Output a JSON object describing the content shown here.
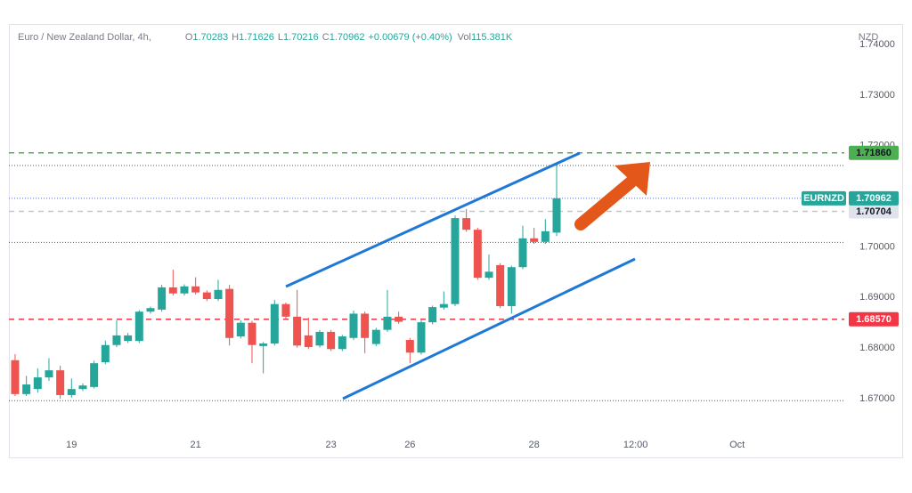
{
  "chart_data": {
    "type": "candlestick",
    "title": "Euro / New Zealand Dollar, 4h,",
    "ohlc_header": [
      {
        "label": "O",
        "value": "1.70283"
      },
      {
        "label": "H",
        "value": "1.71626"
      },
      {
        "label": "L",
        "value": "1.70216"
      },
      {
        "label": "C",
        "value": "1.70962"
      }
    ],
    "change": "+0.00679 (+0.40%)",
    "volume_label": "Vol",
    "volume": "115.381K",
    "currency": "NZD",
    "up_color": "#26a69a",
    "down_color": "#ef5350",
    "x": [
      0,
      1,
      2,
      3,
      4,
      5,
      6,
      7,
      8,
      9,
      10,
      11,
      12,
      13,
      14,
      15,
      16,
      17,
      18,
      19,
      20,
      21,
      22,
      23,
      24,
      25,
      26,
      27,
      28,
      29,
      30,
      31,
      32,
      33,
      34,
      35,
      36,
      37,
      38,
      39,
      40,
      41,
      42,
      43,
      44,
      45,
      46,
      47,
      48
    ],
    "open": [
      1.6776,
      1.6709,
      1.6719,
      1.6742,
      1.6756,
      1.6707,
      1.6719,
      1.6723,
      1.6772,
      1.6806,
      1.6814,
      1.6814,
      1.6872,
      1.6876,
      1.692,
      1.6908,
      1.6922,
      1.691,
      1.6897,
      1.6917,
      1.6823,
      1.685,
      1.6804,
      1.6809,
      1.6887,
      1.6862,
      1.6825,
      1.6805,
      1.6832,
      1.6798,
      1.682,
      1.6868,
      1.6808,
      1.6836,
      1.6862,
      1.6816,
      1.6791,
      1.6851,
      1.688,
      1.6887,
      1.7057,
      1.7034,
      1.6939,
      1.6964,
      1.6883,
      1.696,
      1.7017,
      1.701,
      1.70283
    ],
    "high": [
      1.6788,
      1.6745,
      1.676,
      1.678,
      1.6765,
      1.674,
      1.673,
      1.6775,
      1.6815,
      1.6855,
      1.683,
      1.6875,
      1.6882,
      1.6925,
      1.6955,
      1.6926,
      1.694,
      1.6914,
      1.6935,
      1.6925,
      1.6855,
      1.6854,
      1.6812,
      1.6895,
      1.689,
      1.6915,
      1.686,
      1.6836,
      1.6836,
      1.6826,
      1.6874,
      1.6872,
      1.684,
      1.6915,
      1.6872,
      1.682,
      1.6855,
      1.6884,
      1.6912,
      1.7062,
      1.7075,
      1.7038,
      1.6985,
      1.6968,
      1.6963,
      1.7042,
      1.7038,
      1.7055,
      1.71626
    ],
    "low": [
      1.6705,
      1.6705,
      1.6712,
      1.6735,
      1.67,
      1.6702,
      1.6715,
      1.672,
      1.6768,
      1.6802,
      1.681,
      1.681,
      1.6868,
      1.6872,
      1.6904,
      1.6904,
      1.6906,
      1.6893,
      1.6893,
      1.6805,
      1.6819,
      1.677,
      1.675,
      1.6805,
      1.6858,
      1.6801,
      1.6798,
      1.6801,
      1.6794,
      1.6794,
      1.6816,
      1.679,
      1.6804,
      1.6832,
      1.6848,
      1.677,
      1.6787,
      1.6847,
      1.6876,
      1.6883,
      1.703,
      1.6935,
      1.6935,
      1.6879,
      1.6868,
      1.6956,
      1.7006,
      1.7006,
      1.70216
    ],
    "close": [
      1.6709,
      1.6728,
      1.6742,
      1.6756,
      1.6707,
      1.6719,
      1.6726,
      1.677,
      1.6806,
      1.6825,
      1.6825,
      1.6872,
      1.6879,
      1.692,
      1.6908,
      1.6922,
      1.691,
      1.6897,
      1.6915,
      1.682,
      1.685,
      1.6806,
      1.6809,
      1.6887,
      1.6862,
      1.6805,
      1.6802,
      1.6832,
      1.6798,
      1.6823,
      1.6868,
      1.682,
      1.6836,
      1.6862,
      1.6852,
      1.6791,
      1.6851,
      1.6881,
      1.6887,
      1.7057,
      1.7034,
      1.6939,
      1.6951,
      1.6883,
      1.696,
      1.7017,
      1.701,
      1.7031,
      1.70962
    ],
    "xlim": [
      -0.55,
      73.5
    ],
    "xticks": [
      {
        "value": 5,
        "label": "19"
      },
      {
        "value": 16,
        "label": "21"
      },
      {
        "value": 28,
        "label": "23"
      },
      {
        "value": 35,
        "label": "26"
      },
      {
        "value": 46,
        "label": "28"
      },
      {
        "value": 55,
        "label": "12:00"
      },
      {
        "value": 64,
        "label": "Oct"
      }
    ],
    "ylim": [
      1.66348,
      1.74408
    ],
    "yticks": [
      {
        "value": 1.67,
        "label": "1.67000"
      },
      {
        "value": 1.68,
        "label": "1.68000"
      },
      {
        "value": 1.69,
        "label": "1.69000"
      },
      {
        "value": 1.7,
        "label": "1.70000"
      },
      {
        "value": 1.71,
        "label": "1.71000"
      },
      {
        "value": 1.72,
        "label": "1.72000"
      },
      {
        "value": 1.73,
        "label": "1.73000"
      },
      {
        "value": 1.74,
        "label": "1.74000"
      }
    ],
    "dotted_levels": [
      1.7161,
      1.7009,
      1.6696
    ],
    "levels": [
      {
        "value": 1.7186,
        "label": "1.71860",
        "color": "#4caf50",
        "box": "#4caf50",
        "text_color": "#131722",
        "style": "dashed"
      },
      {
        "value": 1.6857,
        "label": "1.68570",
        "color": "#f23645",
        "box": "#f23645",
        "text_color": "#ffffff",
        "style": "dashed"
      },
      {
        "value": 1.70704,
        "label": "1.70704",
        "color": "#c3c6ce",
        "box": "#e0e3eb",
        "text_color": "#131722",
        "style": "dashed"
      },
      {
        "value": 1.70962,
        "label": "1.70962",
        "name": "EURNZD",
        "color": "#5b6cf0",
        "box": "#26a69a",
        "text_color": "#ffffff",
        "style": "dotted"
      }
    ]
  }
}
